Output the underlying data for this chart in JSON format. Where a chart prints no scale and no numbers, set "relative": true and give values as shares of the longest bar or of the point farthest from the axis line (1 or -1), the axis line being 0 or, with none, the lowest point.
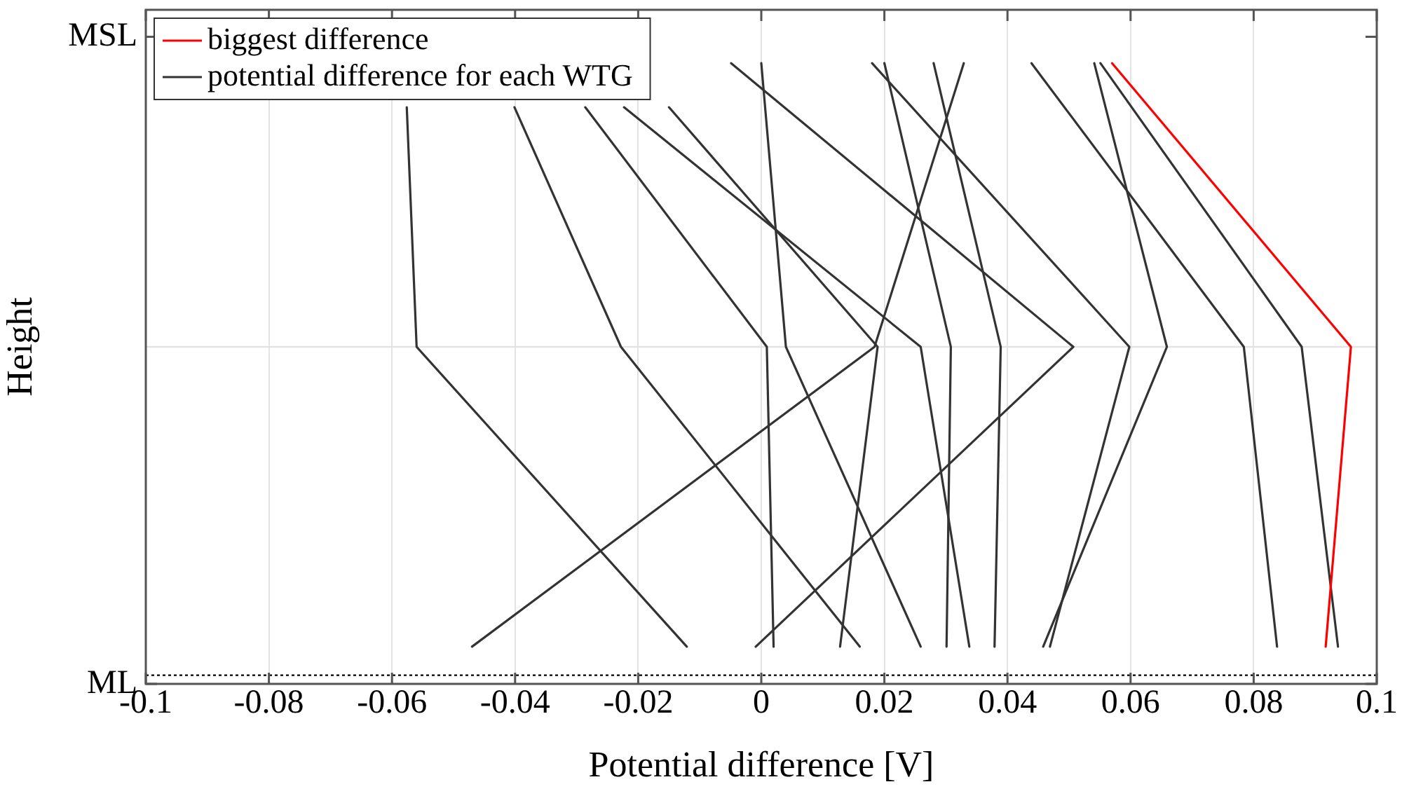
{
  "chart_data": {
    "type": "line",
    "xlabel": "Potential difference [V]",
    "ylabel": "Height",
    "xlim": [
      -0.1,
      0.1
    ],
    "xticks": [
      -0.1,
      -0.08,
      -0.06,
      -0.04,
      -0.02,
      0,
      0.02,
      0.04,
      0.06,
      0.08,
      0.1
    ],
    "relative": true,
    "grid": true,
    "legend": "top left",
    "line_style": "solid",
    "marker": "none",
    "annotations": [
      "ML",
      "MSL"
    ],
    "ref_lines": [
      {
        "axis": "y",
        "value": 0.014,
        "color": "#000000",
        "line_style": "dotted"
      },
      {
        "axis": "y",
        "value": 0.543,
        "color": "#e3e3e3",
        "line_style": "solid"
      }
    ],
    "series": [
      {
        "name": "biggest difference",
        "color": "#ff0000",
        "x": [
          0.057,
          0.0958,
          0.0917
        ],
        "values": [
          1,
          0.543,
          0.06
        ]
      },
      {
        "name": "potential difference for each WTG",
        "color": "#333333",
        "x": [
          -0.0576,
          -0.056,
          -0.0121
        ],
        "values": [
          0.929,
          0.543,
          0.06
        ]
      },
      {
        "color": "#333333",
        "x": [
          -0.0401,
          -0.0228,
          0.016
        ],
        "values": [
          0.929,
          0.543,
          0.06
        ]
      },
      {
        "color": "#333333",
        "x": [
          -0.0286,
          0.0009,
          0.002
        ],
        "values": [
          0.929,
          0.543,
          0.06
        ]
      },
      {
        "color": "#333333",
        "x": [
          -0.0223,
          0.0259,
          0.0338
        ],
        "values": [
          0.929,
          0.543,
          0.06
        ]
      },
      {
        "color": "#333333",
        "x": [
          -0.015,
          0.0189,
          0.0128
        ],
        "values": [
          0.929,
          0.543,
          0.06
        ]
      },
      {
        "color": "#333333",
        "x": [
          -0.0049,
          0.0507,
          -0.0009
        ],
        "values": [
          1,
          0.543,
          0.06
        ]
      },
      {
        "color": "#333333",
        "x": [
          0,
          0.004,
          0.0259
        ],
        "values": [
          1,
          0.543,
          0.06
        ]
      },
      {
        "color": "#333333",
        "x": [
          0.018,
          0.0598,
          0.0469
        ],
        "values": [
          1,
          0.543,
          0.06
        ]
      },
      {
        "color": "#333333",
        "x": [
          0.02,
          0.0308,
          0.0301
        ],
        "values": [
          1,
          0.543,
          0.06
        ]
      },
      {
        "color": "#333333",
        "x": [
          0.028,
          0.0389,
          0.0379
        ],
        "values": [
          1,
          0.543,
          0.06
        ]
      },
      {
        "color": "#333333",
        "x": [
          0.0329,
          0.0184,
          -0.047
        ],
        "values": [
          1,
          0.543,
          0.06
        ]
      },
      {
        "color": "#333333",
        "x": [
          0.0439,
          0.0784,
          0.0838
        ],
        "values": [
          1,
          0.543,
          0.06
        ]
      },
      {
        "color": "#333333",
        "x": [
          0.0541,
          0.0659,
          0.0458
        ],
        "values": [
          1,
          0.543,
          0.06
        ]
      },
      {
        "color": "#333333",
        "x": [
          0.0551,
          0.0878,
          0.0937
        ],
        "values": [
          1,
          0.543,
          0.06
        ]
      }
    ]
  }
}
